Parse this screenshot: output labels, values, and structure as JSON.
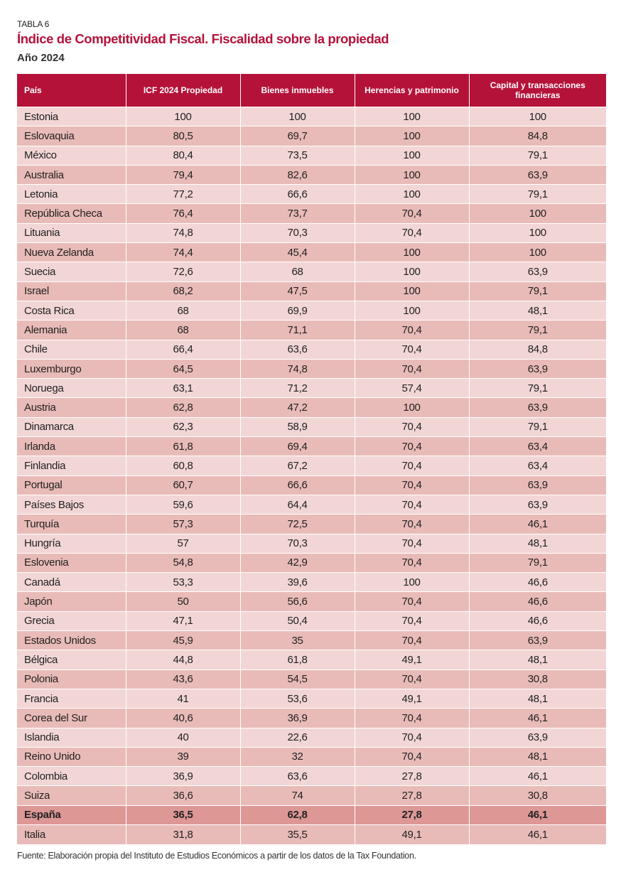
{
  "header": {
    "label": "TABLA 6",
    "title": "Índice de Competitividad Fiscal. Fiscalidad sobre la propiedad",
    "subtitle": "Año 2024"
  },
  "table": {
    "columns": [
      "País",
      "ICF 2024 Propiedad",
      "Bienes inmuebles",
      "Herencias y patrimonio",
      "Capital y transacciones financieras"
    ],
    "rows": [
      [
        "Estonia",
        "100",
        "100",
        "100",
        "100"
      ],
      [
        "Eslovaquia",
        "80,5",
        "69,7",
        "100",
        "84,8"
      ],
      [
        "México",
        "80,4",
        "73,5",
        "100",
        "79,1"
      ],
      [
        "Australia",
        "79,4",
        "82,6",
        "100",
        "63,9"
      ],
      [
        "Letonia",
        "77,2",
        "66,6",
        "100",
        "79,1"
      ],
      [
        "República Checa",
        "76,4",
        "73,7",
        "70,4",
        "100"
      ],
      [
        "Lituania",
        "74,8",
        "70,3",
        "70,4",
        "100"
      ],
      [
        "Nueva Zelanda",
        "74,4",
        "45,4",
        "100",
        "100"
      ],
      [
        "Suecia",
        "72,6",
        "68",
        "100",
        "63,9"
      ],
      [
        "Israel",
        "68,2",
        "47,5",
        "100",
        "79,1"
      ],
      [
        "Costa Rica",
        "68",
        "69,9",
        "100",
        "48,1"
      ],
      [
        "Alemania",
        "68",
        "71,1",
        "70,4",
        "79,1"
      ],
      [
        "Chile",
        "66,4",
        "63,6",
        "70,4",
        "84,8"
      ],
      [
        "Luxemburgo",
        "64,5",
        "74,8",
        "70,4",
        "63,9"
      ],
      [
        "Noruega",
        "63,1",
        "71,2",
        "57,4",
        "79,1"
      ],
      [
        "Austria",
        "62,8",
        "47,2",
        "100",
        "63,9"
      ],
      [
        "Dinamarca",
        "62,3",
        "58,9",
        "70,4",
        "79,1"
      ],
      [
        "Irlanda",
        "61,8",
        "69,4",
        "70,4",
        "63,4"
      ],
      [
        "Finlandia",
        "60,8",
        "67,2",
        "70,4",
        "63,4"
      ],
      [
        "Portugal",
        "60,7",
        "66,6",
        "70,4",
        "63,9"
      ],
      [
        "Países Bajos",
        "59,6",
        "64,4",
        "70,4",
        "63,9"
      ],
      [
        "Turquía",
        "57,3",
        "72,5",
        "70,4",
        "46,1"
      ],
      [
        "Hungría",
        "57",
        "70,3",
        "70,4",
        "48,1"
      ],
      [
        "Eslovenia",
        "54,8",
        "42,9",
        "70,4",
        "79,1"
      ],
      [
        "Canadá",
        "53,3",
        "39,6",
        "100",
        "46,6"
      ],
      [
        "Japón",
        "50",
        "56,6",
        "70,4",
        "46,6"
      ],
      [
        "Grecia",
        "47,1",
        "50,4",
        "70,4",
        "46,6"
      ],
      [
        "Estados Unidos",
        "45,9",
        "35",
        "70,4",
        "63,9"
      ],
      [
        "Bélgica",
        "44,8",
        "61,8",
        "49,1",
        "48,1"
      ],
      [
        "Polonia",
        "43,6",
        "54,5",
        "70,4",
        "30,8"
      ],
      [
        "Francia",
        "41",
        "53,6",
        "49,1",
        "48,1"
      ],
      [
        "Corea del Sur",
        "40,6",
        "36,9",
        "70,4",
        "46,1"
      ],
      [
        "Islandia",
        "40",
        "22,6",
        "70,4",
        "63,9"
      ],
      [
        "Reino Unido",
        "39",
        "32",
        "70,4",
        "48,1"
      ],
      [
        "Colombia",
        "36,9",
        "63,6",
        "27,8",
        "46,1"
      ],
      [
        "Suiza",
        "36,6",
        "74",
        "27,8",
        "30,8"
      ],
      [
        "España",
        "36,5",
        "62,8",
        "27,8",
        "46,1"
      ],
      [
        "Italia",
        "31,8",
        "35,5",
        "49,1",
        "46,1"
      ]
    ],
    "highlighted_rows": [
      36
    ]
  },
  "footer": {
    "source": "Fuente: Elaboración propia del Instituto de Estudios Económicos a partir de los datos de la Tax Foundation."
  }
}
